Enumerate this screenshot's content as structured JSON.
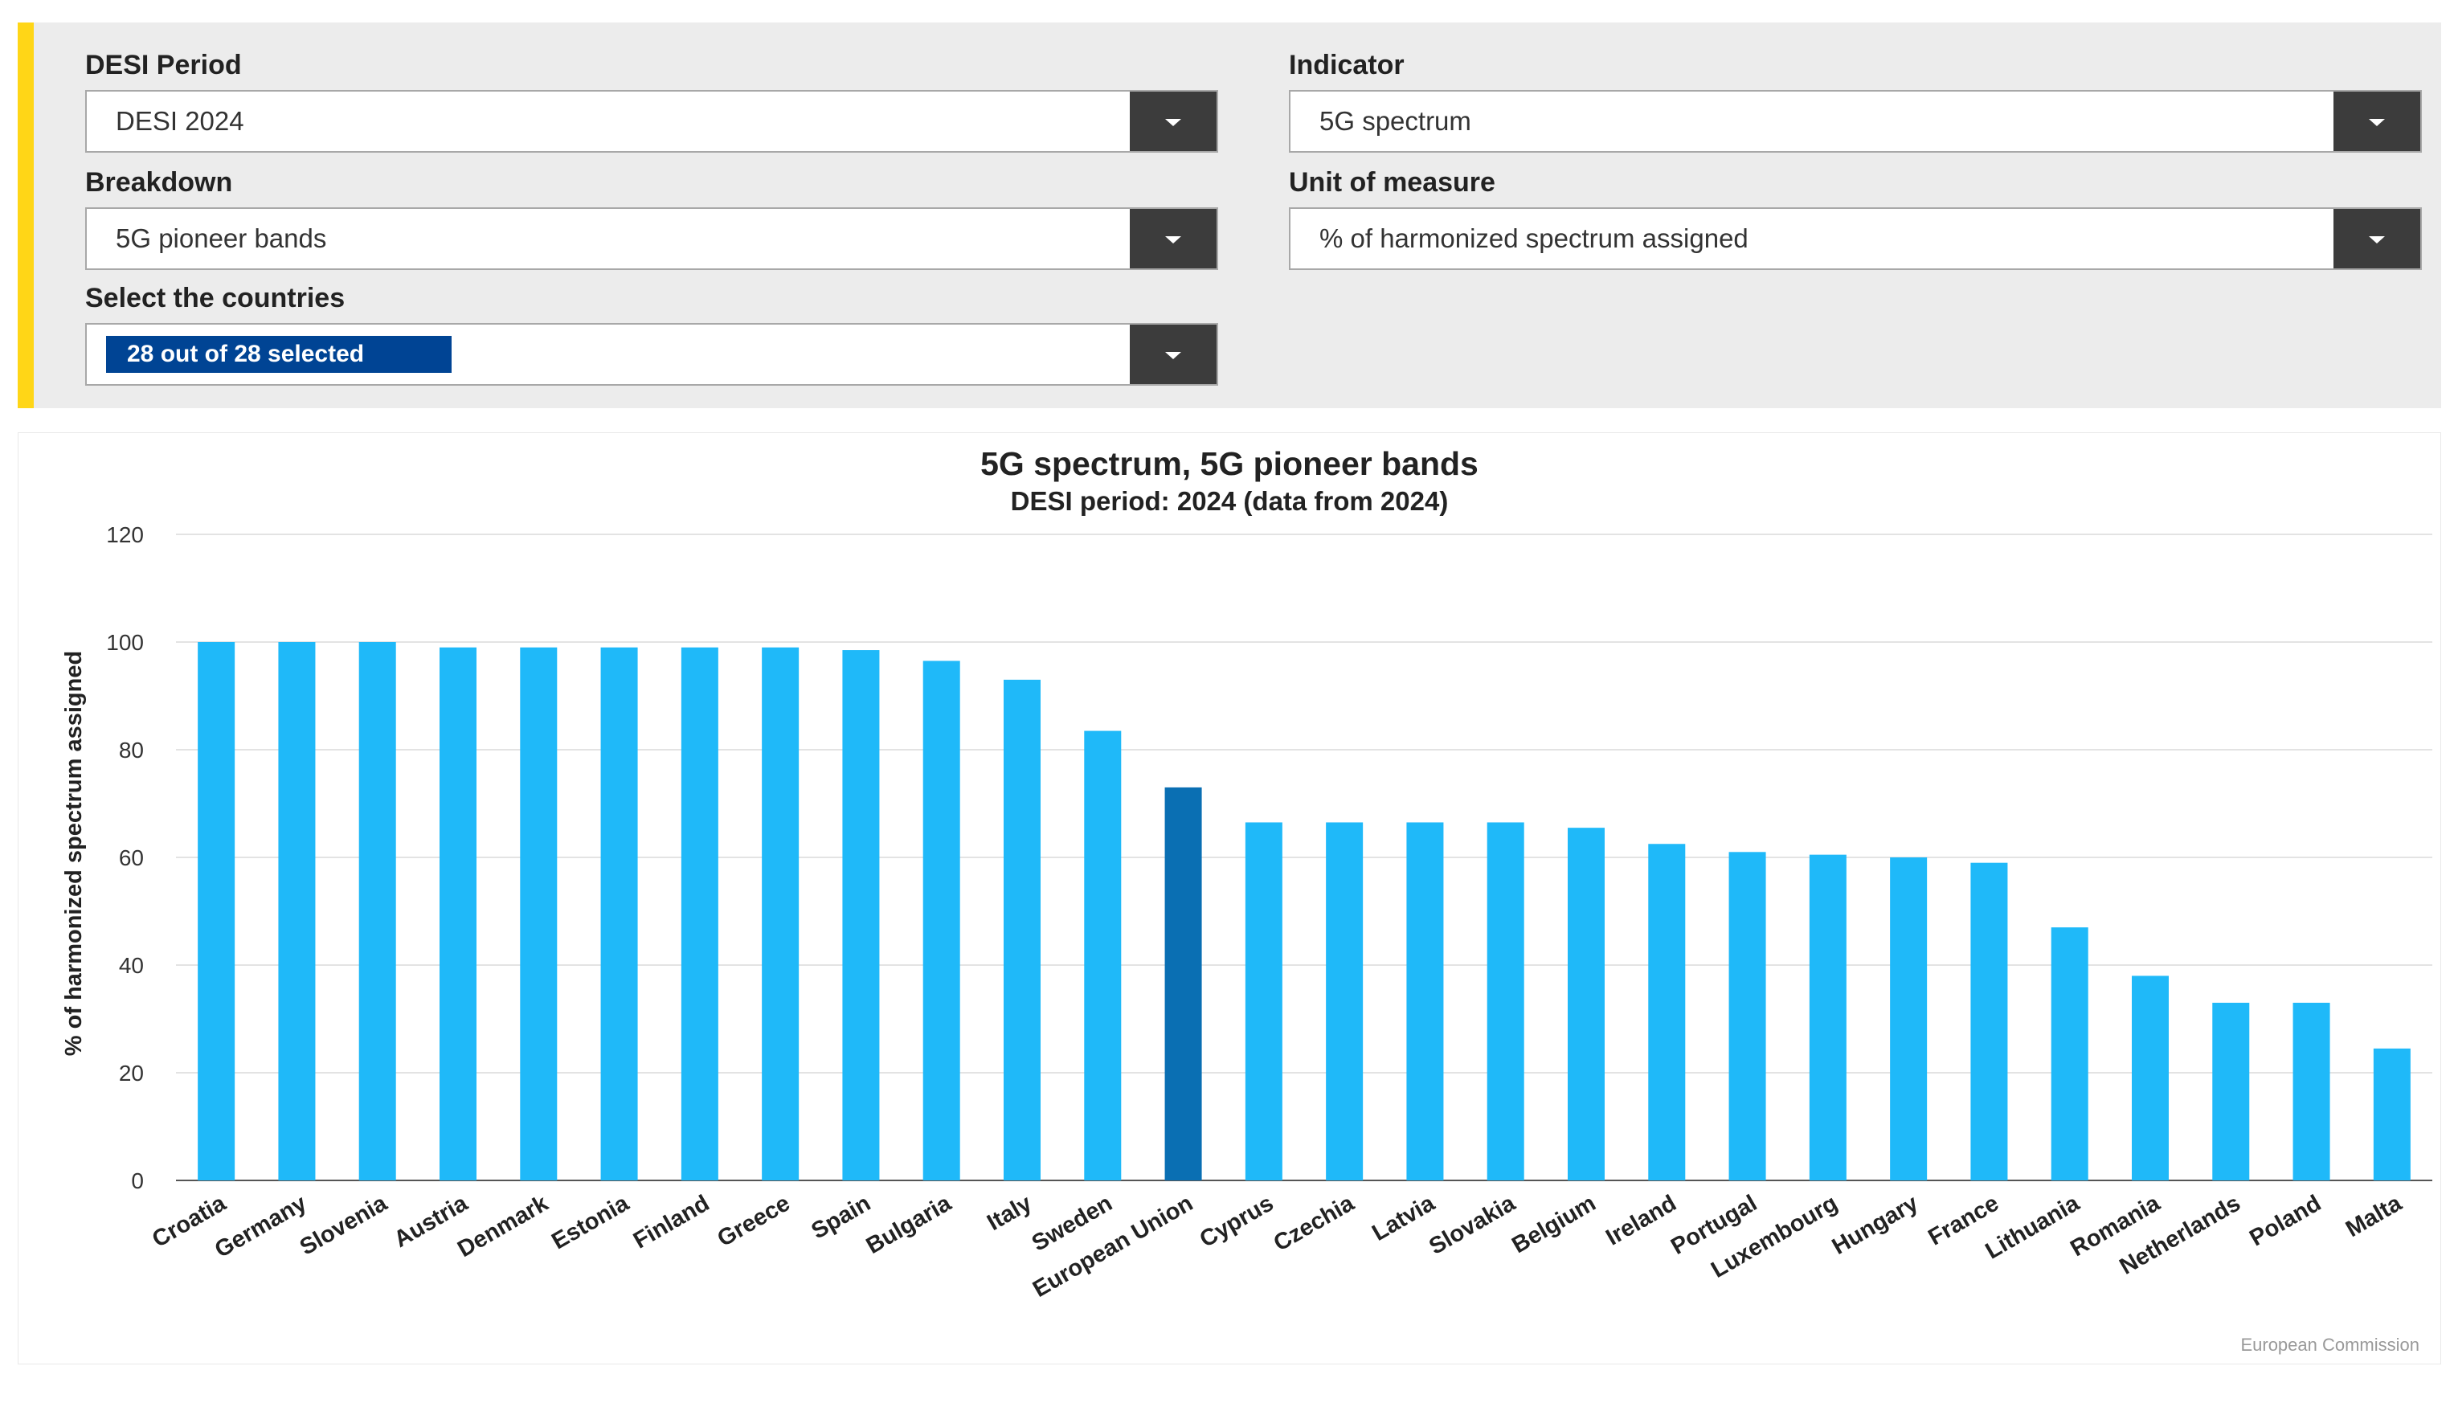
{
  "filters": {
    "desi_period": {
      "label": "DESI Period",
      "value": "DESI 2024"
    },
    "indicator": {
      "label": "Indicator",
      "value": "5G spectrum"
    },
    "breakdown": {
      "label": "Breakdown",
      "value": "5G pioneer bands"
    },
    "unit": {
      "label": "Unit of measure",
      "value": "% of harmonized spectrum assigned"
    },
    "countries": {
      "label": "Select the countries",
      "value": "28 out of 28 selected"
    }
  },
  "icons": {
    "dropdown": "chevron-down-icon"
  },
  "colors": {
    "accent": "#ffd617",
    "bar": "#1fb9f9",
    "highlight_bar": "#0a6fb3",
    "chip": "#004494"
  },
  "chart_data": {
    "type": "bar",
    "title": "5G spectrum, 5G pioneer bands",
    "subtitle": "DESI period: 2024 (data from 2024)",
    "ylabel": "% of harmonized spectrum assigned",
    "xlabel": "",
    "ylim": [
      0,
      120
    ],
    "yticks": [
      0,
      20,
      40,
      60,
      80,
      100,
      120
    ],
    "grid": true,
    "highlight": "European Union",
    "categories": [
      "Croatia",
      "Germany",
      "Slovenia",
      "Austria",
      "Denmark",
      "Estonia",
      "Finland",
      "Greece",
      "Spain",
      "Bulgaria",
      "Italy",
      "Sweden",
      "European Union",
      "Cyprus",
      "Czechia",
      "Latvia",
      "Slovakia",
      "Belgium",
      "Ireland",
      "Portugal",
      "Luxembourg",
      "Hungary",
      "France",
      "Lithuania",
      "Romania",
      "Netherlands",
      "Poland",
      "Malta"
    ],
    "values": [
      100,
      100,
      100,
      99,
      99,
      99,
      99,
      99,
      98.5,
      96.5,
      93,
      83.5,
      73,
      66.5,
      66.5,
      66.5,
      66.5,
      65.5,
      62.5,
      61,
      60.5,
      60,
      59,
      47,
      38,
      33,
      33,
      24.5
    ],
    "credit": "European Commission"
  }
}
